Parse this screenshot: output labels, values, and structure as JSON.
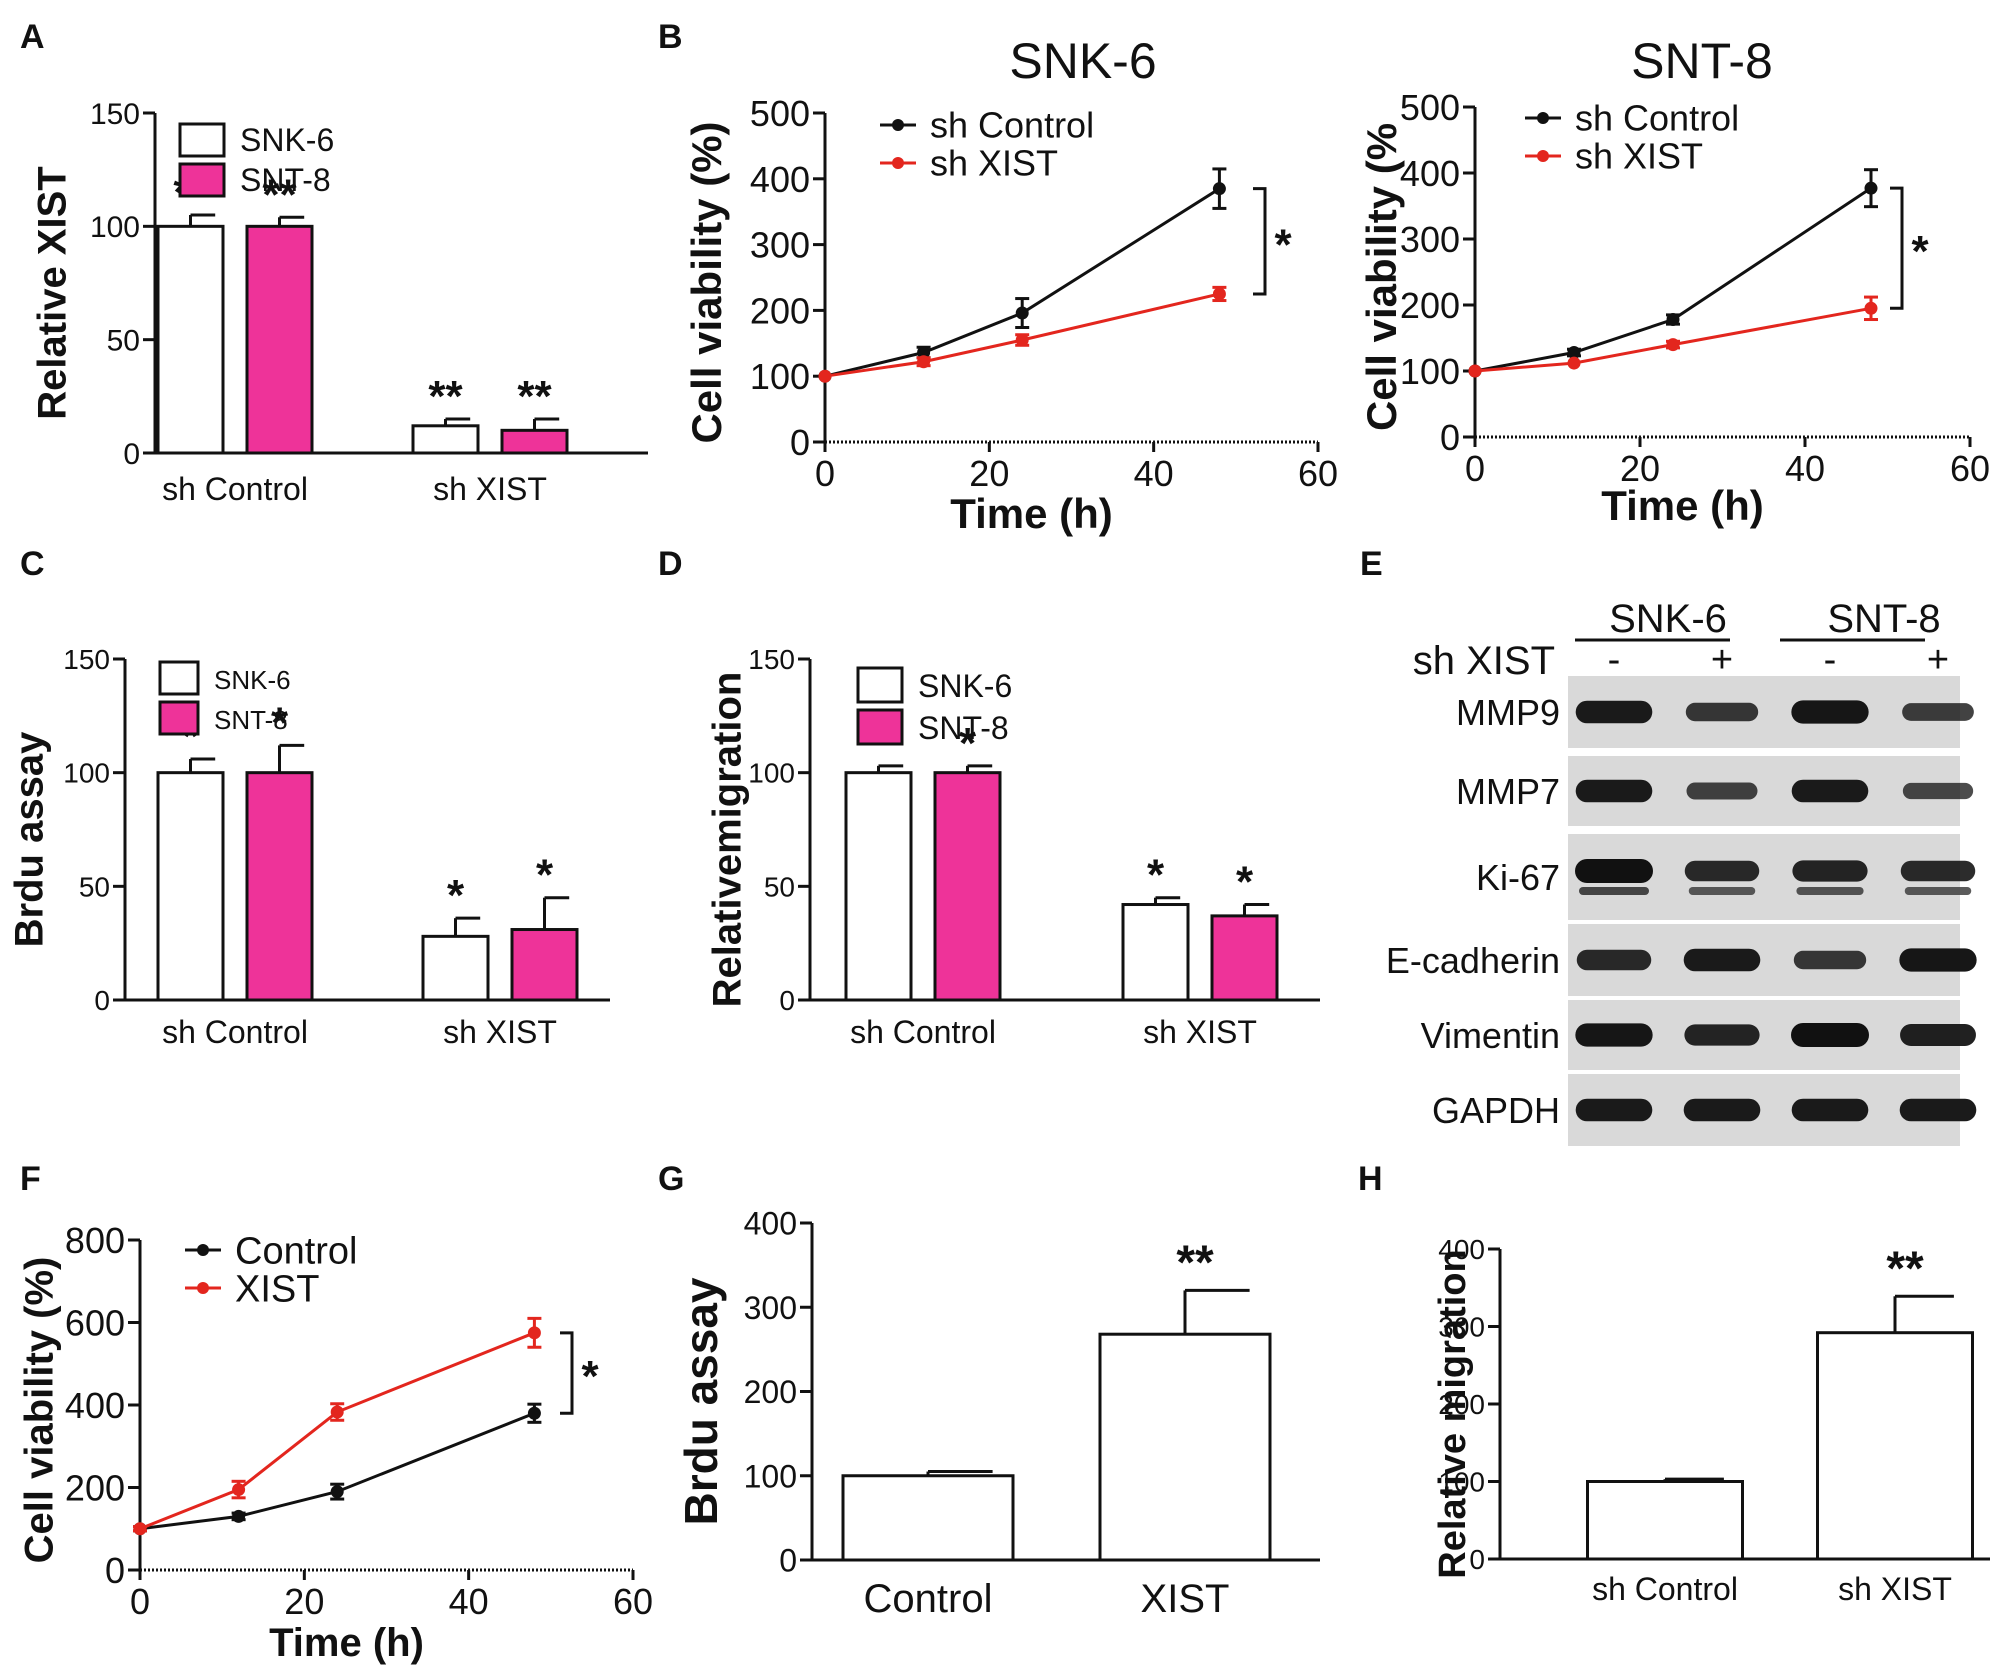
{
  "chart_data": [
    {
      "id": "A",
      "panel_label": "A",
      "type": "bar",
      "ylabel": "Relative XIST",
      "xlabel": "",
      "ylim": [
        0,
        150
      ],
      "yticks": [
        0,
        50,
        100,
        150
      ],
      "categories": [
        "sh Control",
        "sh XIST"
      ],
      "series": [
        {
          "name": "SNK-6",
          "color": "#ffffff",
          "values": [
            100,
            12
          ],
          "errors": [
            5,
            3
          ]
        },
        {
          "name": "SNT-8",
          "color": "#ee3399",
          "values": [
            100,
            10
          ],
          "errors": [
            4,
            5
          ]
        }
      ],
      "annotations": [
        "**",
        "**"
      ]
    },
    {
      "id": "B1",
      "panel_label": "B",
      "type": "line",
      "title": "SNK-6",
      "xlabel": "Time (h)",
      "ylabel": "Cell viability (%)",
      "xlim": [
        0,
        60
      ],
      "ylim": [
        0,
        500
      ],
      "xticks": [
        0,
        20,
        40,
        60
      ],
      "yticks": [
        0,
        100,
        200,
        300,
        400,
        500
      ],
      "x": [
        0,
        12,
        24,
        48
      ],
      "series": [
        {
          "name": "sh Control",
          "color": "#111111",
          "values": [
            100,
            136,
            196,
            385
          ],
          "errors": [
            3,
            8,
            22,
            30
          ]
        },
        {
          "name": "sh XIST",
          "color": "#e3261e",
          "values": [
            100,
            122,
            155,
            225
          ],
          "errors": [
            3,
            6,
            8,
            10
          ]
        }
      ],
      "significance": "*"
    },
    {
      "id": "B2",
      "panel_label": "",
      "type": "line",
      "title": "SNT-8",
      "xlabel": "Time (h)",
      "ylabel": "Cell viability (%",
      "xlim": [
        0,
        60
      ],
      "ylim": [
        0,
        500
      ],
      "xticks": [
        0,
        20,
        40,
        60
      ],
      "yticks": [
        0,
        100,
        200,
        300,
        400,
        500
      ],
      "x": [
        0,
        12,
        24,
        48
      ],
      "series": [
        {
          "name": "sh Control",
          "color": "#111111",
          "values": [
            100,
            128,
            178,
            377
          ],
          "errors": [
            3,
            5,
            7,
            28
          ]
        },
        {
          "name": "sh XIST",
          "color": "#e3261e",
          "values": [
            100,
            112,
            140,
            195
          ],
          "errors": [
            3,
            4,
            5,
            17
          ]
        }
      ],
      "significance": "*"
    },
    {
      "id": "C",
      "panel_label": "C",
      "type": "bar",
      "ylabel": "Brdu assay",
      "xlabel": "",
      "ylim": [
        0,
        150
      ],
      "yticks": [
        0,
        50,
        100,
        150
      ],
      "categories": [
        "sh Control",
        "sh XIST"
      ],
      "series": [
        {
          "name": "SNK-6",
          "color": "#ffffff",
          "values": [
            100,
            28
          ],
          "errors": [
            6,
            8
          ]
        },
        {
          "name": "SNT-8",
          "color": "#ee3399",
          "values": [
            100,
            31
          ],
          "errors": [
            12,
            14
          ]
        }
      ],
      "annotations": [
        "*",
        "*"
      ]
    },
    {
      "id": "D",
      "panel_label": "D",
      "type": "bar",
      "ylabel": "Relativemigration",
      "xlabel": "",
      "ylim": [
        0,
        150
      ],
      "yticks": [
        0,
        50,
        100,
        150
      ],
      "categories": [
        "sh Control",
        "sh XIST"
      ],
      "series": [
        {
          "name": "SNK-6",
          "color": "#ffffff",
          "values": [
            100,
            42
          ],
          "errors": [
            3,
            3
          ]
        },
        {
          "name": "SNT-8",
          "color": "#ee3399",
          "values": [
            100,
            37
          ],
          "errors": [
            3,
            5
          ]
        }
      ],
      "annotations": [
        "*",
        "*"
      ]
    },
    {
      "id": "F",
      "panel_label": "F",
      "type": "line",
      "xlabel": "Time (h)",
      "ylabel": "Cell viability (%)",
      "xlim": [
        0,
        60
      ],
      "ylim": [
        0,
        800
      ],
      "xticks": [
        0,
        20,
        40,
        60
      ],
      "yticks": [
        0,
        200,
        400,
        600,
        800
      ],
      "x": [
        0,
        12,
        24,
        48
      ],
      "series": [
        {
          "name": "Control",
          "color": "#111111",
          "values": [
            100,
            130,
            190,
            380
          ],
          "errors": [
            5,
            8,
            18,
            22
          ]
        },
        {
          "name": "XIST",
          "color": "#e3261e",
          "values": [
            100,
            195,
            383,
            575
          ],
          "errors": [
            5,
            20,
            20,
            35
          ]
        }
      ],
      "significance": "*"
    },
    {
      "id": "G",
      "panel_label": "G",
      "type": "bar",
      "ylabel": "Brdu assay",
      "xlabel": "",
      "ylim": [
        0,
        400
      ],
      "yticks": [
        0,
        100,
        200,
        300,
        400
      ],
      "categories": [
        "Control",
        "XIST"
      ],
      "values": [
        100,
        268
      ],
      "errors": [
        5,
        52
      ],
      "annotations": [
        "",
        "**"
      ]
    },
    {
      "id": "H",
      "panel_label": "H",
      "type": "bar",
      "ylabel": "Relative migration",
      "xlabel": "",
      "ylim": [
        0,
        400
      ],
      "yticks": [
        0,
        100,
        200,
        300,
        400
      ],
      "categories": [
        "sh Control",
        "sh XIST"
      ],
      "values": [
        100,
        292
      ],
      "errors": [
        3,
        47
      ],
      "annotations": [
        "",
        "**"
      ]
    }
  ],
  "blot": {
    "panel_label": "E",
    "cell_lines": [
      "SNK-6",
      "SNT-8"
    ],
    "treatment_label": "sh XIST",
    "lane_signs": [
      "-",
      "+",
      "-",
      "+"
    ],
    "proteins": [
      {
        "name": "MMP9",
        "intensities": [
          0.9,
          0.6,
          0.95,
          0.55
        ],
        "double": false
      },
      {
        "name": "MMP7",
        "intensities": [
          0.9,
          0.5,
          0.9,
          0.45
        ],
        "double": false
      },
      {
        "name": "Ki-67",
        "intensities": [
          1.0,
          0.75,
          0.8,
          0.75
        ],
        "double": true
      },
      {
        "name": "E-cadherin",
        "intensities": [
          0.75,
          0.9,
          0.6,
          0.95
        ],
        "double": false
      },
      {
        "name": "Vimentin",
        "intensities": [
          0.95,
          0.8,
          1.0,
          0.85
        ],
        "double": false
      },
      {
        "name": "GAPDH",
        "intensities": [
          0.9,
          0.9,
          0.9,
          0.9
        ],
        "double": false
      }
    ]
  }
}
